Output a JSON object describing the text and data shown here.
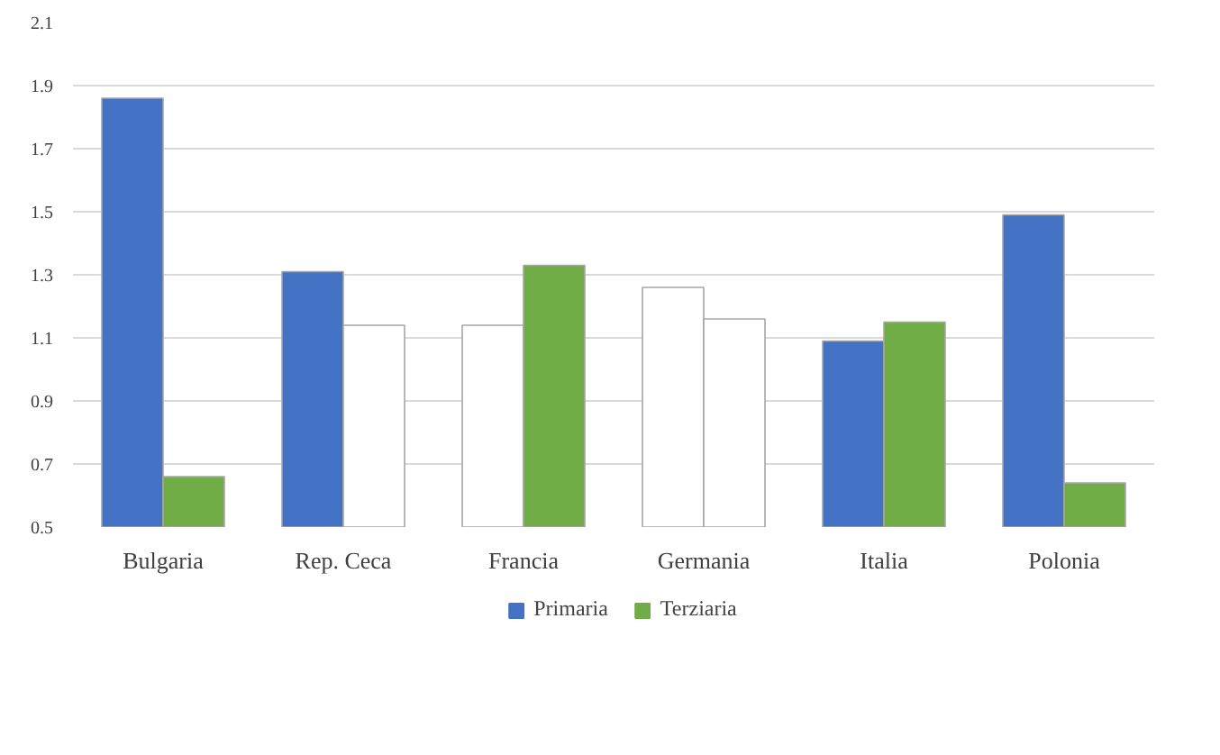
{
  "chart_data": {
    "type": "bar",
    "categories": [
      "Bulgaria",
      "Rep. Ceca",
      "Francia",
      "Germania",
      "Italia",
      "Polonia"
    ],
    "series": [
      {
        "name": "Primaria",
        "color": "#4472c4",
        "colors": [
          "#4472c4",
          "#4472c4",
          "#ffffff",
          "#ffffff",
          "#4472c4",
          "#4472c4"
        ],
        "values": [
          1.86,
          1.31,
          1.14,
          1.26,
          1.09,
          1.49
        ]
      },
      {
        "name": "Terziaria",
        "color": "#70ad47",
        "colors": [
          "#70ad47",
          "#ffffff",
          "#70ad47",
          "#ffffff",
          "#70ad47",
          "#70ad47"
        ],
        "values": [
          0.66,
          1.14,
          1.33,
          1.16,
          1.15,
          0.64
        ]
      }
    ],
    "ylim": [
      0.5,
      2.1
    ],
    "yticks": [
      0.5,
      0.7,
      0.9,
      1.1,
      1.3,
      1.5,
      1.7,
      1.9,
      2.1
    ],
    "grid": "y",
    "legend": "bottom"
  }
}
